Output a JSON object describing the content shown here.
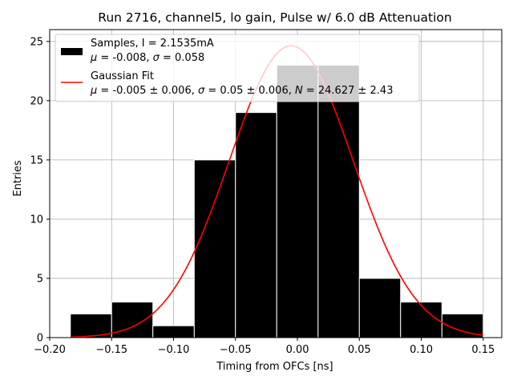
{
  "chart_data": {
    "type": "histogram",
    "title": "Run 2716, channel5, lo gain, Pulse w/ 6.0 dB Attenuation",
    "xlabel": "Timing from OFCs [ns]",
    "ylabel": "Entries",
    "xlim": [
      -0.2,
      0.165
    ],
    "ylim": [
      0,
      26
    ],
    "grid": true,
    "xticks": [
      -0.2,
      -0.15,
      -0.1,
      -0.05,
      0.0,
      0.05,
      0.1,
      0.15
    ],
    "xtick_labels": [
      "−0.20",
      "−0.15",
      "−0.10",
      "−0.05",
      "0.00",
      "0.05",
      "0.10",
      "0.15"
    ],
    "yticks": [
      0,
      5,
      10,
      15,
      20,
      25
    ],
    "ytick_labels": [
      "0",
      "5",
      "10",
      "15",
      "20",
      "25"
    ],
    "bin_edges": [
      -0.1833,
      -0.15,
      -0.1167,
      -0.0833,
      -0.05,
      -0.0167,
      0.0167,
      0.05,
      0.0833,
      0.1167,
      0.15
    ],
    "counts": [
      2,
      3,
      1,
      15,
      19,
      23,
      23,
      5,
      3,
      2
    ],
    "bar_color": "#000000",
    "bar_edge_color": "#ffffff",
    "fit": {
      "type": "gaussian",
      "mu": -0.005,
      "sigma": 0.05,
      "N": 24.627,
      "color": "#ff0000"
    },
    "legend": {
      "location": "upper-left",
      "entries": [
        {
          "kind": "patch",
          "line1": "Samples, I = 2.1535mA",
          "line2": "μ = -0.008, σ = 0.058"
        },
        {
          "kind": "line",
          "line1": "Gaussian Fit",
          "line2": "μ = -0.005 ± 0.006, σ = 0.05 ± 0.006, N = 24.627 ± 2.43"
        }
      ]
    }
  }
}
